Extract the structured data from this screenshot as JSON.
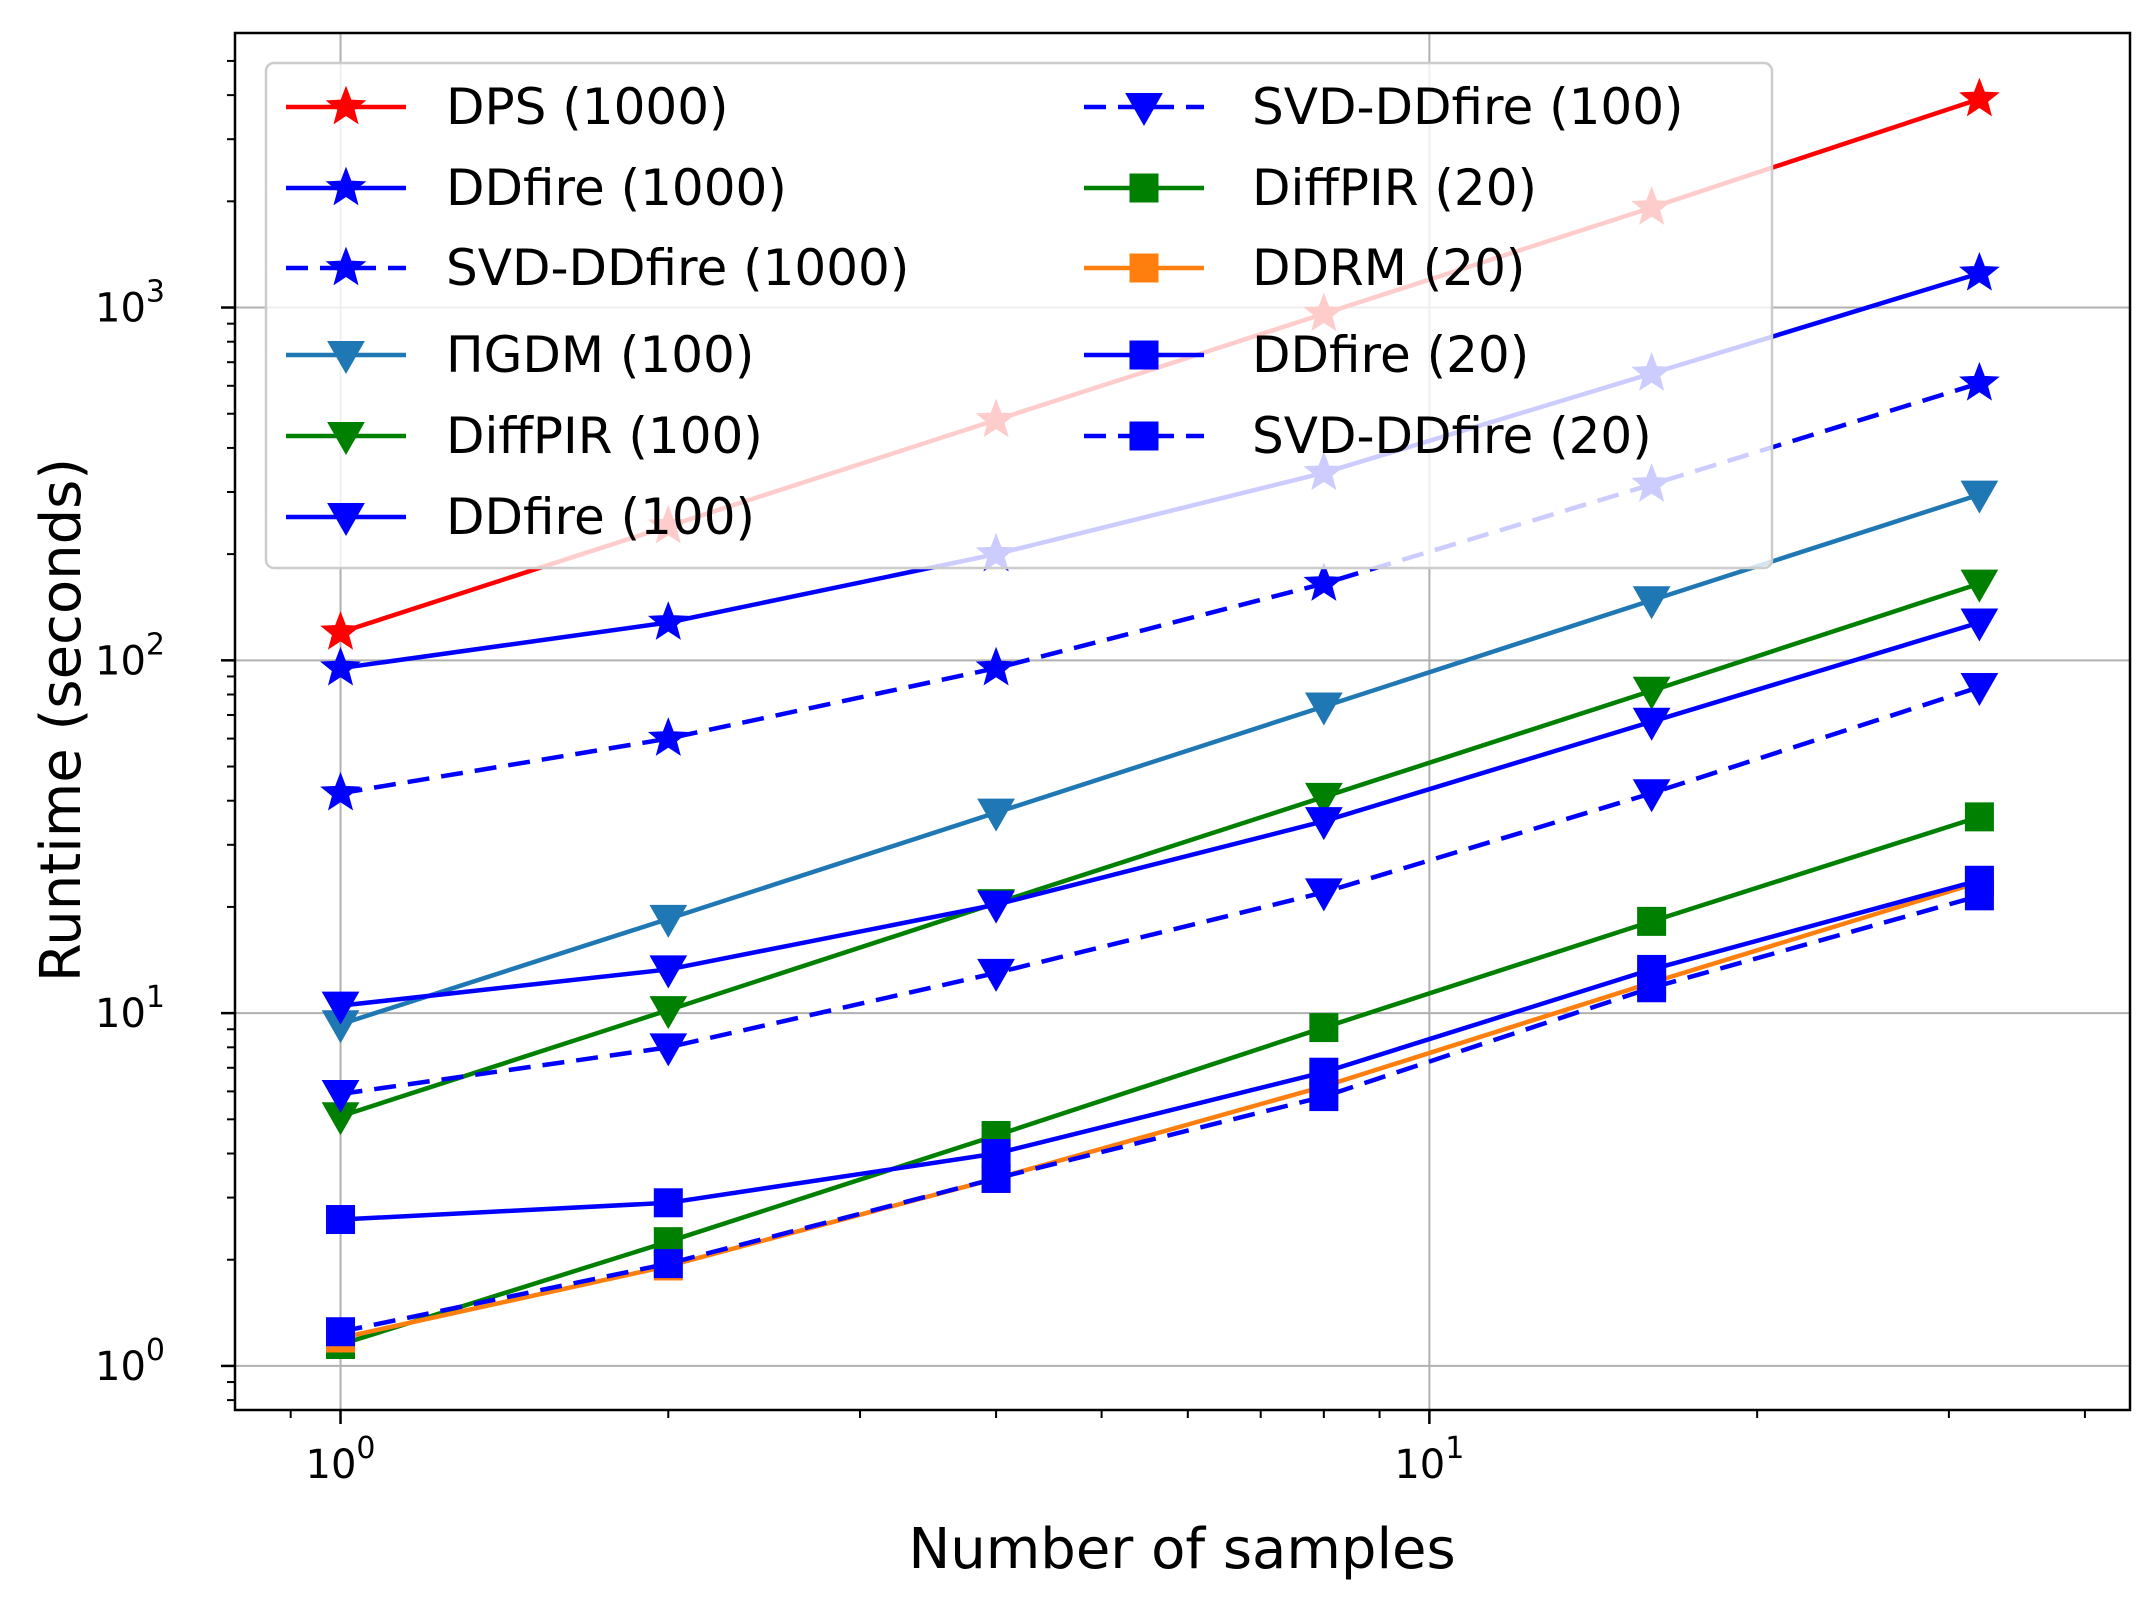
{
  "chart_data": {
    "type": "line",
    "title": "",
    "xlabel": "Number of samples",
    "ylabel": "Runtime (seconds)",
    "xscale": "log",
    "yscale": "log",
    "xlim": [
      0.8,
      44
    ],
    "ylim": [
      0.75,
      6000
    ],
    "grid": true,
    "legend_placement": "upper-left",
    "legend_columns": 2,
    "x": [
      1,
      2,
      4,
      8,
      16,
      32
    ],
    "x_ticks": [
      {
        "value": 1,
        "base": "10",
        "exp": "0"
      },
      {
        "value": 10,
        "base": "10",
        "exp": "1"
      }
    ],
    "y_ticks": [
      {
        "value": 1,
        "base": "10",
        "exp": "0"
      },
      {
        "value": 10,
        "base": "10",
        "exp": "1"
      },
      {
        "value": 100,
        "base": "10",
        "exp": "2"
      },
      {
        "value": 1000,
        "base": "10",
        "exp": "3"
      }
    ],
    "series": [
      {
        "name": "DPS (1000)",
        "color": "#ff0000",
        "dash": "solid",
        "marker": "star",
        "values": [
          120,
          240,
          480,
          960,
          1920,
          3900
        ]
      },
      {
        "name": "DDfire (1000)",
        "color": "#0000ff",
        "dash": "solid",
        "marker": "star",
        "values": [
          95,
          128,
          200,
          340,
          650,
          1250
        ]
      },
      {
        "name": "SVD-DDfire (1000)",
        "color": "#0000ff",
        "dash": "dashed",
        "marker": "star",
        "values": [
          42,
          60,
          95,
          165,
          315,
          610
        ]
      },
      {
        "name": "ΠGDM (100)",
        "color": "#1f77b4",
        "dash": "solid",
        "marker": "triangle-down",
        "values": [
          9.3,
          18.5,
          37,
          74,
          148,
          295
        ]
      },
      {
        "name": "DiffPIR (100)",
        "color": "#008000",
        "dash": "solid",
        "marker": "triangle-down",
        "values": [
          5.1,
          10.2,
          20.5,
          41,
          82,
          165
        ]
      },
      {
        "name": "DDfire (100)",
        "color": "#0000ff",
        "dash": "solid",
        "marker": "triangle-down",
        "values": [
          10.5,
          13.3,
          20.3,
          35,
          67,
          128
        ]
      },
      {
        "name": "SVD-DDfire (100)",
        "color": "#0000ff",
        "dash": "dashed",
        "marker": "triangle-down",
        "values": [
          5.9,
          8.0,
          13.0,
          22,
          42,
          84
        ]
      },
      {
        "name": "DiffPIR (20)",
        "color": "#008000",
        "dash": "solid",
        "marker": "square",
        "values": [
          1.15,
          2.25,
          4.5,
          9.1,
          18.2,
          36
        ]
      },
      {
        "name": "DDRM (20)",
        "color": "#ff7f0e",
        "dash": "solid",
        "marker": "square",
        "values": [
          1.2,
          1.92,
          3.4,
          6.2,
          12.2,
          23.5
        ]
      },
      {
        "name": "DDfire (20)",
        "color": "#0000ff",
        "dash": "solid",
        "marker": "square",
        "values": [
          2.6,
          2.9,
          4.0,
          6.8,
          13.3,
          23.8
        ]
      },
      {
        "name": "SVD-DDfire (20)",
        "color": "#0000ff",
        "dash": "dashed",
        "marker": "square",
        "values": [
          1.25,
          1.95,
          3.4,
          5.8,
          11.8,
          21.5
        ]
      }
    ]
  }
}
